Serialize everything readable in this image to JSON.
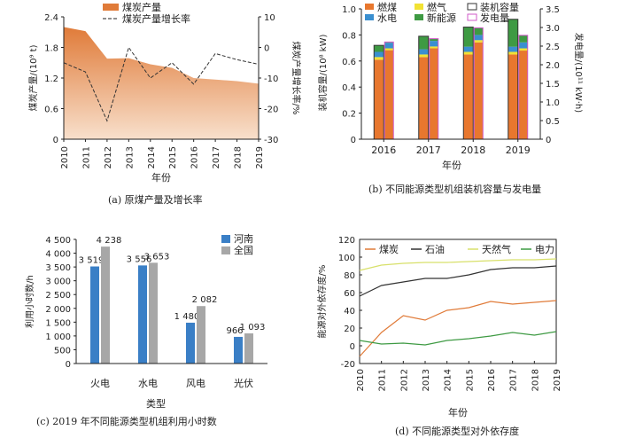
{
  "captions": {
    "a": "(a) 原煤产量及增长率",
    "b": "(b) 不同能源类型机组装机容量与发电量",
    "c": "(c) 2019 年不同能源类型机组利用小时数",
    "d": "(d) 不同能源类型对外依存度"
  },
  "chart_data": [
    {
      "id": "a",
      "type": "area",
      "title": "(a) 原煤产量及增长率",
      "xlabel": "年份",
      "ylabel": "煤炭产量/(10⁹ t)",
      "y2label": "煤炭产量增长率/%",
      "x": [
        "2010",
        "2011",
        "2012",
        "2013",
        "2014",
        "2015",
        "2016",
        "2017",
        "2018",
        "2019"
      ],
      "ylim": [
        0,
        2.4
      ],
      "yticks": [
        "0",
        "0.6",
        "1.2",
        "1.8",
        "2.4"
      ],
      "y2lim": [
        -30,
        10
      ],
      "y2ticks": [
        "-30",
        "-20",
        "-10",
        "0",
        "10"
      ],
      "series": [
        {
          "name": "煤炭产量",
          "axis": "left",
          "kind": "area",
          "color": "#e07b39",
          "values": [
            2.2,
            2.12,
            1.58,
            1.59,
            1.47,
            1.4,
            1.2,
            1.17,
            1.14,
            1.09
          ]
        },
        {
          "name": "煤炭产量增长率",
          "axis": "right",
          "kind": "dashed",
          "color": "#333333",
          "values": [
            -5,
            -8,
            -24,
            0,
            -10,
            -5,
            -12,
            -2,
            -4,
            -5.5
          ]
        }
      ]
    },
    {
      "id": "b",
      "type": "bar",
      "title": "(b) 不同能源类型机组装机容量与发电量",
      "xlabel": "年份",
      "ylabel": "装机容量/(10⁸ kW)",
      "y2label": "发电量/(10¹¹ kW·h)",
      "categories": [
        "2016",
        "2017",
        "2018",
        "2019"
      ],
      "ylim": [
        0,
        1.0
      ],
      "yticks": [
        "0",
        "0.2",
        "0.4",
        "0.6",
        "0.8",
        "1.0"
      ],
      "y2lim": [
        0,
        3.5
      ],
      "y2ticks": [
        "0",
        "0.5",
        "1.0",
        "1.5",
        "2.0",
        "2.5",
        "3.0",
        "3.5"
      ],
      "legend": [
        "燃煤",
        "燃气",
        "装机容量",
        "水电",
        "新能源",
        "发电量"
      ],
      "colors": {
        "coal": "#e8772e",
        "gas": "#f2e233",
        "hydro": "#3a8fd0",
        "renewable": "#3e9a43",
        "capacity_edge": "#333333",
        "generation_edge": "#d15ac8"
      },
      "capacity": {
        "coal": [
          0.61,
          0.63,
          0.65,
          0.65
        ],
        "gas": [
          0.02,
          0.02,
          0.02,
          0.02
        ],
        "hydro": [
          0.04,
          0.04,
          0.04,
          0.04
        ],
        "renewable": [
          0.05,
          0.1,
          0.15,
          0.21
        ]
      },
      "generation": {
        "coal": [
          2.39,
          2.44,
          2.6,
          2.38
        ],
        "gas": [
          0.05,
          0.05,
          0.06,
          0.06
        ],
        "hydro": [
          0.15,
          0.15,
          0.14,
          0.16
        ],
        "renewable": [
          0.02,
          0.06,
          0.19,
          0.19
        ]
      }
    },
    {
      "id": "c",
      "type": "bar",
      "title": "(c) 2019 年不同能源类型机组利用小时数",
      "xlabel": "类型",
      "ylabel": "利用小时数/h",
      "categories": [
        "火电",
        "水电",
        "风电",
        "光伏"
      ],
      "ylim": [
        0,
        4500
      ],
      "yticks": [
        "0",
        "500",
        "1 000",
        "1 500",
        "2 000",
        "2 500",
        "3 000",
        "3 500",
        "4 000",
        "4 500"
      ],
      "legend": [
        "河南",
        "全国"
      ],
      "series": [
        {
          "name": "河南",
          "color": "#3a7fc6",
          "values": [
            3519,
            3556,
            1480,
            966
          ],
          "labels": [
            "3 519",
            "3 556",
            "1 480",
            "966"
          ]
        },
        {
          "name": "全国",
          "color": "#a7a7a7",
          "values": [
            4238,
            3653,
            2082,
            1093
          ],
          "labels": [
            "4 238",
            "3 653",
            "2 082",
            "1 093"
          ]
        }
      ]
    },
    {
      "id": "d",
      "type": "line",
      "title": "(d) 不同能源类型对外依存度",
      "xlabel": "年份",
      "ylabel": "能源对外依存度/%",
      "x": [
        "2010",
        "2011",
        "2012",
        "2013",
        "2014",
        "2015",
        "2016",
        "2017",
        "2018",
        "2019"
      ],
      "ylim": [
        -20,
        120
      ],
      "yticks": [
        "-20",
        "0",
        "20",
        "40",
        "60",
        "80",
        "100",
        "120"
      ],
      "series": [
        {
          "name": "煤炭",
          "color": "#e07b39",
          "values": [
            -12,
            15,
            34,
            29,
            40,
            43,
            50,
            47,
            49,
            51
          ]
        },
        {
          "name": "石油",
          "color": "#333333",
          "values": [
            56,
            68,
            72,
            76,
            76,
            80,
            86,
            88,
            88,
            90
          ]
        },
        {
          "name": "天然气",
          "color": "#d8e06a",
          "values": [
            85,
            91,
            93,
            94,
            94,
            95,
            96,
            97,
            97,
            98
          ]
        },
        {
          "name": "电力",
          "color": "#3e9a43",
          "values": [
            6,
            2,
            3,
            1,
            6,
            8,
            11,
            15,
            12,
            16
          ]
        }
      ]
    }
  ]
}
